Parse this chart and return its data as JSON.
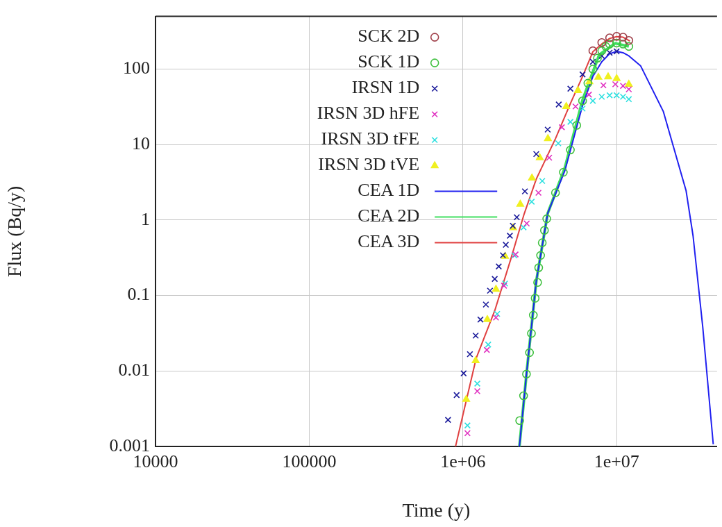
{
  "chart_data": {
    "type": "scatter",
    "xlabel": "Time (y)",
    "ylabel": "Flux (Bq/y)",
    "log": "xy",
    "grid": true,
    "legend": "top left",
    "xlim": [
      10000,
      45000000
    ],
    "xticks": [
      10000,
      100000,
      {
        "value": 1000000,
        "label": "1e+06"
      },
      {
        "value": 10000000,
        "label": "1e+07"
      }
    ],
    "ylim": [
      0.001,
      500
    ],
    "yticks": [
      0.001,
      0.01,
      0.1,
      1,
      10,
      100
    ],
    "series": [
      {
        "name": "SCK 2D",
        "marker": "circle",
        "color": "#a0404a",
        "x": [
          7000000,
          8000000,
          9000000,
          10000000,
          11000000,
          12000000
        ],
        "values": [
          175,
          225,
          260,
          272,
          265,
          240
        ]
      },
      {
        "name": "SCK 1D",
        "marker": "circle",
        "color": "#40c040",
        "x": [
          2340000,
          2480000,
          2590000,
          2710000,
          2790000,
          2870000,
          2950000,
          3060000,
          3110000,
          3200000,
          3280000,
          3390000,
          3510000,
          4000000,
          4500000,
          5000000,
          5500000,
          6000000,
          6500000,
          7000000,
          7500000,
          8000000,
          8500000,
          9000000,
          10000000,
          11000000,
          12000000
        ],
        "values": [
          0.0022,
          0.0047,
          0.0091,
          0.0175,
          0.0315,
          0.055,
          0.092,
          0.149,
          0.234,
          0.34,
          0.5,
          0.73,
          1.04,
          2.3,
          4.3,
          8.5,
          18,
          38,
          65,
          100,
          140,
          175,
          200,
          215,
          222,
          215,
          200
        ]
      },
      {
        "name": "IRSN 1D",
        "marker": "cross",
        "color": "#1a1a9a",
        "x": [
          800000,
          910000,
          1010000,
          1110000,
          1210000,
          1300000,
          1410000,
          1500000,
          1610000,
          1710000,
          1820000,
          1900000,
          2020000,
          2110000,
          2240000,
          2530000,
          3000000,
          3560000,
          4200000,
          5000000,
          6000000,
          7000000,
          8000000,
          9000000,
          10000000
        ],
        "values": [
          0.00225,
          0.0048,
          0.0093,
          0.0167,
          0.0294,
          0.048,
          0.076,
          0.116,
          0.166,
          0.243,
          0.342,
          0.47,
          0.62,
          0.84,
          1.09,
          2.4,
          7.5,
          15.8,
          34,
          55,
          85,
          125,
          150,
          165,
          172
        ]
      },
      {
        "name": "IRSN 3D hFE",
        "marker": "cross",
        "color": "#e030c0",
        "x": [
          1070000,
          1240000,
          1430000,
          1640000,
          1850000,
          2200000,
          2600000,
          3100000,
          3640000,
          4400000,
          5400000,
          6600000,
          8200000,
          9800000,
          11000000,
          12000000
        ],
        "values": [
          0.0015,
          0.0054,
          0.019,
          0.051,
          0.135,
          0.35,
          0.9,
          2.3,
          6.7,
          17,
          32,
          46,
          61,
          63,
          60,
          54
        ]
      },
      {
        "name": "IRSN 3D tFE",
        "marker": "cross",
        "color": "#30e0e0",
        "x": [
          1070000,
          1240000,
          1460000,
          1670000,
          1880000,
          2160000,
          2480000,
          2800000,
          3280000,
          4170000,
          5000000,
          6000000,
          7000000,
          8000000,
          9000000,
          10000000,
          11000000,
          12000000
        ],
        "values": [
          0.0019,
          0.0068,
          0.0224,
          0.057,
          0.144,
          0.34,
          0.8,
          1.75,
          3.3,
          10.4,
          20,
          30,
          38,
          43,
          45,
          45,
          43,
          40
        ]
      },
      {
        "name": "IRSN 3D tVE",
        "marker": "triangle",
        "color": "#f0f020",
        "x": [
          1050000,
          1210000,
          1440000,
          1640000,
          1880000,
          2120000,
          2360000,
          2810000,
          3160000,
          3570000,
          4700000,
          5600000,
          6650000,
          7600000,
          8800000,
          10000000,
          12000000
        ],
        "values": [
          0.0042,
          0.0137,
          0.048,
          0.121,
          0.33,
          0.79,
          1.62,
          3.6,
          6.7,
          12,
          32,
          52,
          68,
          78,
          79,
          75,
          63
        ]
      },
      {
        "name": "CEA 1D",
        "type": "line",
        "color": "#2020f0",
        "x": [
          2330000,
          2600000,
          3000000,
          3560000,
          4600000,
          6000000,
          7000000,
          8000000,
          9000000,
          10000000,
          11000000,
          12000000,
          14300000,
          20100000,
          28300000,
          31400000,
          36300000,
          42500000
        ],
        "values": [
          0.001,
          0.0098,
          0.155,
          1.23,
          4.5,
          33,
          80,
          125,
          160,
          172,
          165,
          150,
          111,
          27.6,
          2.44,
          0.62,
          0.0385,
          0.00107
        ]
      },
      {
        "name": "CEA 2D",
        "type": "line",
        "color": "#40e060",
        "x": [
          2330000,
          2600000,
          3000000,
          3560000,
          4600000,
          6000000,
          7700000,
          9800000,
          12000000
        ],
        "values": [
          0.001,
          0.0098,
          0.155,
          1.23,
          4.9,
          39,
          155,
          220,
          200
        ]
      },
      {
        "name": "CEA 3D",
        "type": "line",
        "color": "#e04040",
        "x": [
          895000,
          1220000,
          1610000,
          2050000,
          2500000,
          3000000,
          4000000,
          5000000,
          6000000,
          7000000,
          8000000,
          9000000,
          10000000,
          11000000,
          12200000
        ],
        "values": [
          0.001,
          0.0148,
          0.063,
          0.306,
          1.2,
          3.5,
          12,
          35,
          80,
          170,
          215,
          255,
          270,
          265,
          235
        ]
      }
    ]
  }
}
